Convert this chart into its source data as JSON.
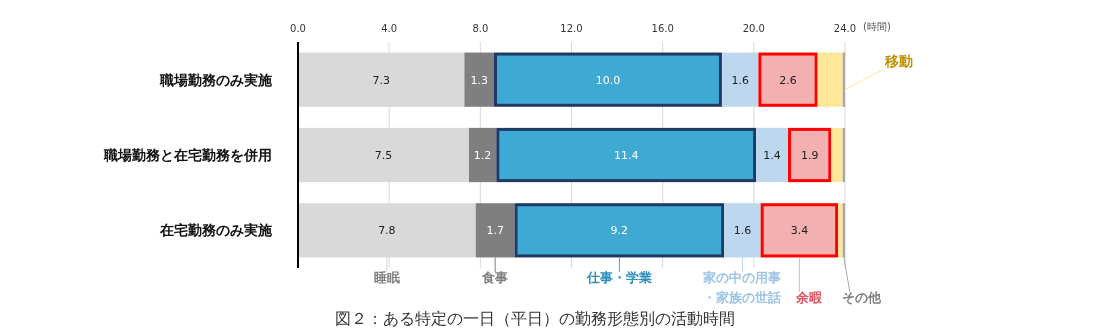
{
  "chart_data": {
    "type": "bar",
    "orientation": "horizontal",
    "stacked": true,
    "title": "図２：ある特定の一日（平日）の勤務形態別の活動時間",
    "xlabel": "(時間)",
    "categories": [
      "職場勤務のみ実施",
      "職場勤務と在宅勤務を併用",
      "在宅勤務のみ実施"
    ],
    "xlim": [
      0,
      24
    ],
    "xticks": [
      {
        "value": 0,
        "label": "0.0"
      },
      {
        "value": 4,
        "label": "4.0"
      },
      {
        "value": 8,
        "label": "8.0"
      },
      {
        "value": 12,
        "label": "12.0"
      },
      {
        "value": 16,
        "label": "16.0"
      },
      {
        "value": 20,
        "label": "20.0"
      },
      {
        "value": 24,
        "label": "24.0"
      }
    ],
    "grid": "x",
    "legend": "bottom",
    "series": [
      {
        "name": "睡眠",
        "color": "#d9d9d9",
        "values": [
          7.3,
          7.5,
          7.8
        ],
        "value_labels": [
          "7.3",
          "7.5",
          "7.8"
        ]
      },
      {
        "name": "食事",
        "color": "#7f7f7f",
        "values": [
          1.3,
          1.2,
          1.7
        ],
        "value_labels": [
          "1.3",
          "1.2",
          "1.7"
        ]
      },
      {
        "name": "仕事・学業",
        "color": "#3eaad4",
        "values": [
          10.0,
          11.4,
          9.2
        ],
        "value_labels": [
          "10.0",
          "11.4",
          "9.2"
        ]
      },
      {
        "name": "家の中の用事・家族の世話",
        "color": "#bdd7ee",
        "values": [
          1.6,
          1.4,
          1.6
        ],
        "value_labels": [
          "1.6",
          "1.4",
          "1.6"
        ]
      },
      {
        "name": "余暇",
        "color": "#f2b0b0",
        "values": [
          2.6,
          1.9,
          3.4
        ],
        "value_labels": [
          "2.6",
          "1.9",
          "3.4"
        ]
      },
      {
        "name": "移動",
        "color": "#ffe699",
        "values": [
          1.1,
          0.5,
          0.2
        ]
      },
      {
        "name": "その他",
        "color": "#a6a6a6",
        "values": [
          0.1,
          0.1,
          0.1
        ]
      }
    ]
  }
}
